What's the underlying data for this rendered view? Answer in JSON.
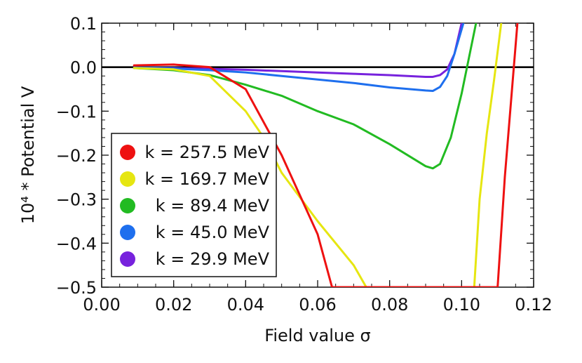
{
  "chart_data": {
    "type": "line",
    "title": "",
    "xlabel": "Field value σ",
    "ylabel": "10⁴ * Potential V",
    "xlim": [
      0.0,
      0.12
    ],
    "ylim": [
      -0.5,
      0.1
    ],
    "x_ticks": [
      "0.00",
      "0.02",
      "0.04",
      "0.06",
      "0.08",
      "0.10",
      "0.12"
    ],
    "y_ticks": [
      "0.1",
      "0.0",
      "−0.1",
      "−0.2",
      "−0.3",
      "−0.4",
      "−0.5"
    ],
    "grid": false,
    "legend_position": "bottom-left",
    "series": [
      {
        "name": "k = 257.5 MeV",
        "color": "#ee1111",
        "x": [
          0.009,
          0.02,
          0.03,
          0.04,
          0.05,
          0.06,
          0.064,
          0.11,
          0.112,
          0.114,
          0.1155
        ],
        "y": [
          0.004,
          0.006,
          0.0,
          -0.05,
          -0.2,
          -0.38,
          -0.5,
          -0.5,
          -0.25,
          -0.05,
          0.1
        ]
      },
      {
        "name": "k = 169.7 MeV",
        "color": "#e6e611",
        "x": [
          0.009,
          0.02,
          0.03,
          0.04,
          0.045,
          0.05,
          0.06,
          0.07,
          0.0735,
          0.1035,
          0.105,
          0.107,
          0.109,
          0.111
        ],
        "y": [
          -0.002,
          -0.005,
          -0.02,
          -0.1,
          -0.16,
          -0.24,
          -0.35,
          -0.45,
          -0.5,
          -0.5,
          -0.3,
          -0.15,
          -0.03,
          0.1
        ]
      },
      {
        "name": "k = 89.4 MeV",
        "color": "#22bb22",
        "x": [
          0.009,
          0.02,
          0.03,
          0.04,
          0.05,
          0.06,
          0.07,
          0.08,
          0.09,
          0.092,
          0.094,
          0.097,
          0.1,
          0.102,
          0.104
        ],
        "y": [
          -0.002,
          -0.007,
          -0.018,
          -0.04,
          -0.065,
          -0.1,
          -0.13,
          -0.175,
          -0.225,
          -0.23,
          -0.22,
          -0.16,
          -0.06,
          0.02,
          0.1
        ]
      },
      {
        "name": "k = 45.0 MeV",
        "color": "#1e6fee",
        "x": [
          0.009,
          0.02,
          0.03,
          0.04,
          0.05,
          0.06,
          0.07,
          0.08,
          0.09,
          0.092,
          0.094,
          0.096,
          0.098,
          0.1005
        ],
        "y": [
          -0.001,
          -0.003,
          -0.007,
          -0.012,
          -0.02,
          -0.028,
          -0.036,
          -0.046,
          -0.053,
          -0.054,
          -0.045,
          -0.02,
          0.03,
          0.1
        ]
      },
      {
        "name": "k = 29.9 MeV",
        "color": "#7722dd",
        "x": [
          0.009,
          0.02,
          0.03,
          0.04,
          0.05,
          0.06,
          0.07,
          0.08,
          0.09,
          0.092,
          0.094,
          0.096,
          0.098,
          0.1
        ],
        "y": [
          -0.001,
          -0.002,
          -0.004,
          -0.006,
          -0.009,
          -0.012,
          -0.015,
          -0.018,
          -0.022,
          -0.022,
          -0.018,
          -0.005,
          0.03,
          0.1
        ]
      }
    ]
  }
}
